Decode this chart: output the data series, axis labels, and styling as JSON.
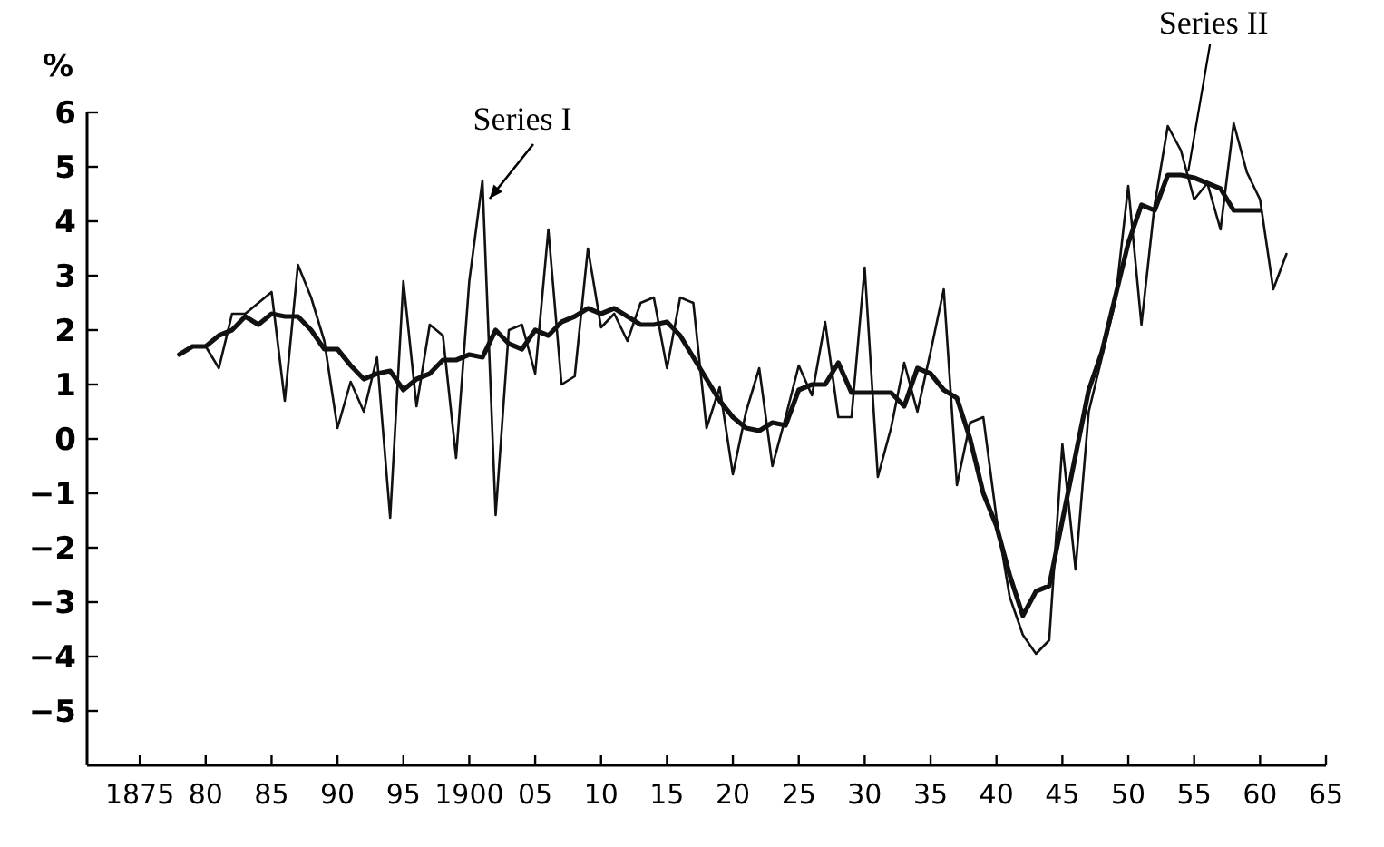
{
  "chart_data": {
    "type": "line",
    "ylabel": "%",
    "xlim": [
      1871,
      1965
    ],
    "ylim": [
      -6,
      6
    ],
    "xticks": [
      {
        "value": 1875,
        "label": "1875"
      },
      {
        "value": 1880,
        "label": "80"
      },
      {
        "value": 1885,
        "label": "85"
      },
      {
        "value": 1890,
        "label": "90"
      },
      {
        "value": 1895,
        "label": "95"
      },
      {
        "value": 1900,
        "label": "1900"
      },
      {
        "value": 1905,
        "label": "05"
      },
      {
        "value": 1910,
        "label": "10"
      },
      {
        "value": 1915,
        "label": "15"
      },
      {
        "value": 1920,
        "label": "20"
      },
      {
        "value": 1925,
        "label": "25"
      },
      {
        "value": 1930,
        "label": "30"
      },
      {
        "value": 1935,
        "label": "35"
      },
      {
        "value": 1940,
        "label": "40"
      },
      {
        "value": 1945,
        "label": "45"
      },
      {
        "value": 1950,
        "label": "50"
      },
      {
        "value": 1955,
        "label": "55"
      },
      {
        "value": 1960,
        "label": "60"
      },
      {
        "value": 1965,
        "label": "65"
      }
    ],
    "yticks": [
      -5,
      -4,
      -3,
      -2,
      -1,
      0,
      1,
      2,
      3,
      4,
      5,
      6
    ],
    "grid": false,
    "marker": "none",
    "series": [
      {
        "color": "#111111",
        "line_style": "solid",
        "x": [
          1878,
          1879,
          1880,
          1881,
          1882,
          1883,
          1884,
          1885,
          1886,
          1887,
          1888,
          1889,
          1890,
          1891,
          1892,
          1893,
          1894,
          1895,
          1896,
          1897,
          1898,
          1899,
          1900,
          1901,
          1902,
          1903,
          1904,
          1905,
          1906,
          1907,
          1908,
          1909,
          1910,
          1911,
          1912,
          1913,
          1914,
          1915,
          1916,
          1917,
          1918,
          1919,
          1920,
          1921,
          1922,
          1923,
          1924,
          1925,
          1926,
          1927,
          1928,
          1929,
          1930,
          1931,
          1932,
          1933,
          1934,
          1935,
          1936,
          1937,
          1938,
          1939,
          1940,
          1941,
          1942,
          1943,
          1944,
          1945,
          1946,
          1947,
          1948,
          1949,
          1950,
          1951,
          1952,
          1953,
          1954,
          1955,
          1956,
          1957,
          1958,
          1959,
          1960,
          1961,
          1962
        ],
        "values": [
          1.55,
          1.7,
          1.7,
          1.3,
          2.3,
          2.3,
          2.5,
          2.7,
          0.7,
          3.2,
          2.6,
          1.8,
          0.2,
          1.05,
          0.5,
          1.5,
          -1.45,
          2.9,
          0.6,
          2.1,
          1.9,
          -0.35,
          2.9,
          4.75,
          -1.4,
          2.0,
          2.1,
          1.2,
          3.85,
          1.0,
          1.15,
          3.5,
          2.05,
          2.3,
          1.8,
          2.5,
          2.6,
          1.3,
          2.6,
          2.5,
          0.2,
          0.95,
          -0.65,
          0.5,
          1.3,
          -0.5,
          0.4,
          1.35,
          0.8,
          2.15,
          0.4,
          0.4,
          3.15,
          -0.7,
          0.2,
          1.4,
          0.5,
          1.6,
          2.75,
          -0.85,
          0.3,
          0.4,
          -1.45,
          -2.9,
          -3.6,
          -3.95,
          -3.7,
          -0.1,
          -2.4,
          0.5,
          1.5,
          2.5,
          4.65,
          2.1,
          4.3,
          5.75,
          5.3,
          4.4,
          4.7,
          3.85,
          5.8,
          4.9,
          4.4,
          2.75,
          3.4
        ]
      },
      {
        "color": "#111111",
        "line_style": "solid",
        "x": [
          1878,
          1879,
          1880,
          1881,
          1882,
          1883,
          1884,
          1885,
          1886,
          1887,
          1888,
          1889,
          1890,
          1891,
          1892,
          1893,
          1894,
          1895,
          1896,
          1897,
          1898,
          1899,
          1900,
          1901,
          1902,
          1903,
          1904,
          1905,
          1906,
          1907,
          1908,
          1909,
          1910,
          1911,
          1912,
          1913,
          1914,
          1915,
          1916,
          1917,
          1918,
          1919,
          1920,
          1921,
          1922,
          1923,
          1924,
          1925,
          1926,
          1927,
          1928,
          1929,
          1930,
          1931,
          1932,
          1933,
          1934,
          1935,
          1936,
          1937,
          1938,
          1939,
          1940,
          1941,
          1942,
          1943,
          1944,
          1945,
          1946,
          1947,
          1948,
          1949,
          1950,
          1951,
          1952,
          1953,
          1954,
          1955,
          1956,
          1957,
          1958,
          1959,
          1960
        ],
        "values": [
          1.55,
          1.7,
          1.7,
          1.9,
          2.0,
          2.25,
          2.1,
          2.3,
          2.25,
          2.25,
          2.0,
          1.65,
          1.65,
          1.35,
          1.1,
          1.2,
          1.25,
          0.9,
          1.1,
          1.2,
          1.45,
          1.45,
          1.55,
          1.5,
          2.0,
          1.75,
          1.65,
          2.0,
          1.9,
          2.15,
          2.25,
          2.4,
          2.3,
          2.4,
          2.25,
          2.1,
          2.1,
          2.15,
          1.9,
          1.5,
          1.1,
          0.7,
          0.4,
          0.2,
          0.15,
          0.3,
          0.25,
          0.9,
          1.0,
          1.0,
          1.4,
          0.85,
          0.85,
          0.85,
          0.85,
          0.6,
          1.3,
          1.2,
          0.9,
          0.75,
          0.0,
          -1.0,
          -1.6,
          -2.5,
          -3.25,
          -2.8,
          -2.7,
          -1.5,
          -0.3,
          0.9,
          1.6,
          2.6,
          3.6,
          4.3,
          4.2,
          4.85,
          4.85,
          4.8,
          4.7,
          4.6,
          4.2,
          4.2,
          4.2
        ]
      }
    ],
    "annotations": [
      {
        "text": "Series I",
        "x": 1901,
        "y": 4.75
      },
      {
        "text": "Series II",
        "x": 1954,
        "y": 4.85
      }
    ]
  }
}
